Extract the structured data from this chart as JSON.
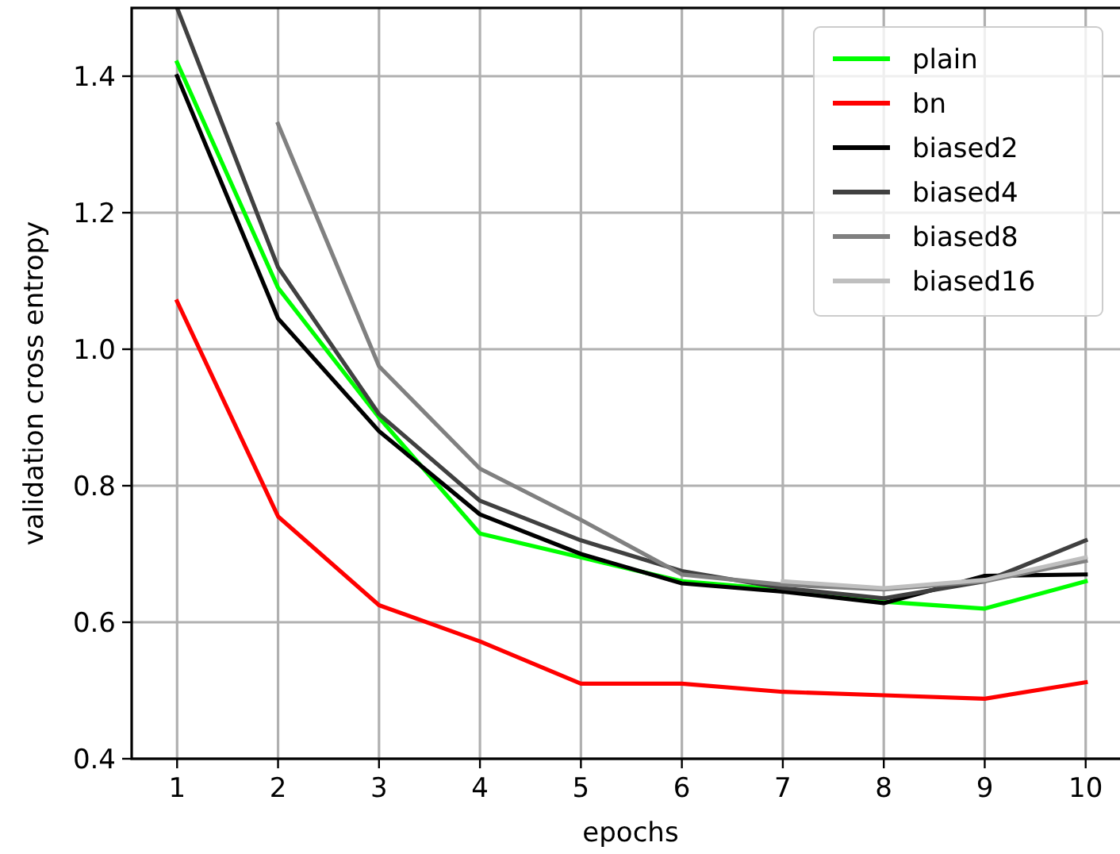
{
  "chart_data": {
    "type": "line",
    "xlabel": "epochs",
    "ylabel": "validation cross entropy",
    "x": [
      1,
      2,
      3,
      4,
      5,
      6,
      7,
      8,
      9,
      10
    ],
    "xlim": [
      0.55,
      10.45
    ],
    "ylim": [
      0.4,
      1.5
    ],
    "xticks": [
      1,
      2,
      3,
      4,
      5,
      6,
      7,
      8,
      9,
      10
    ],
    "yticks": [
      0.4,
      0.6,
      0.8,
      {
        "value": 1,
        "label": "1.0"
      },
      1.2,
      1.4
    ],
    "grid": true,
    "legend": "top right",
    "marker": "none",
    "line_style": "solid",
    "series": [
      {
        "name": "plain",
        "color": "#00ff00",
        "values": [
          1.42,
          1.09,
          0.9,
          0.73,
          0.695,
          0.66,
          0.648,
          0.63,
          0.62,
          0.66
        ]
      },
      {
        "name": "bn",
        "color": "#ff0000",
        "values": [
          1.07,
          0.755,
          0.625,
          0.572,
          0.51,
          0.51,
          0.498,
          0.493,
          0.488,
          0.512
        ]
      },
      {
        "name": "biased2",
        "color": "#000000",
        "values": [
          1.4,
          1.045,
          0.88,
          0.758,
          0.7,
          0.657,
          0.645,
          0.628,
          0.668,
          0.67
        ]
      },
      {
        "name": "biased4",
        "color": "#404040",
        "values": [
          1.5,
          1.12,
          0.905,
          0.778,
          0.72,
          0.675,
          0.65,
          0.635,
          0.66,
          0.72
        ]
      },
      {
        "name": "biased8",
        "color": "#808080",
        "values": [
          null,
          1.33,
          0.975,
          0.825,
          0.75,
          0.67,
          0.655,
          0.648,
          0.66,
          0.69
        ]
      },
      {
        "name": "biased16",
        "color": "#bfbfbf",
        "values": [
          null,
          null,
          null,
          null,
          null,
          null,
          0.66,
          0.65,
          0.662,
          0.695
        ]
      }
    ]
  }
}
